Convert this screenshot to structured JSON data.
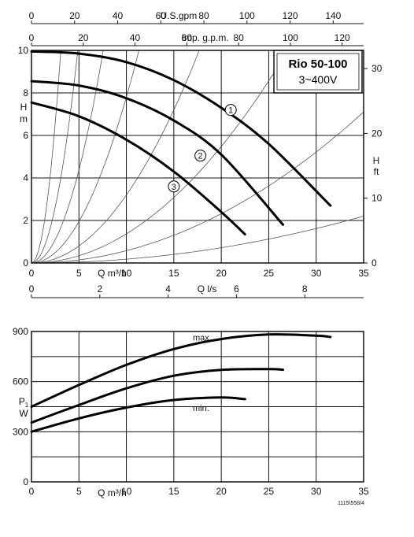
{
  "chart_data": [
    {
      "type": "line",
      "title": "",
      "xlabel": "Q m³/h",
      "ylabel": "H m",
      "y2label": "H ft",
      "xlim": [
        0,
        35
      ],
      "ylim": [
        0,
        10
      ],
      "x_ticks": [
        "0",
        "5",
        "10",
        "15",
        "20",
        "25",
        "30",
        "35"
      ],
      "y_ticks": [
        "0",
        "2",
        "4",
        "6",
        "8",
        "10"
      ],
      "y2_ticks": [
        "0",
        "10",
        "20",
        "30"
      ],
      "y2_ticks_values": [
        0,
        3.048,
        6.096,
        9.144
      ],
      "top_axis_usgpm": {
        "label": "U.S.gpm",
        "ticks": [
          "0",
          "20",
          "40",
          "60",
          "80",
          "100",
          "120",
          "140"
        ],
        "m3h_per_unit": 0.2271
      },
      "top_axis_impgpm": {
        "label": "Imp. g.p.m.",
        "ticks": [
          "0",
          "20",
          "40",
          "60",
          "80",
          "100",
          "120"
        ],
        "m3h_per_unit": 0.2728
      },
      "bottom_axis_ls": {
        "label": "Q  l/s",
        "ticks": [
          "0",
          "2",
          "4",
          "6",
          "8"
        ],
        "m3h_per_unit": 3.6
      },
      "legend_box": {
        "title": "Rio 50-100",
        "subtitle": "3~400V"
      },
      "grid": true,
      "series": [
        {
          "name": "1",
          "x": [
            0,
            5,
            10,
            15,
            20,
            25,
            31.5
          ],
          "y": [
            9.95,
            9.85,
            9.45,
            8.6,
            7.3,
            5.6,
            2.7
          ]
        },
        {
          "name": "2",
          "x": [
            0,
            5,
            10,
            15,
            20,
            26.5
          ],
          "y": [
            8.55,
            8.35,
            7.75,
            6.7,
            5.1,
            1.8
          ]
        },
        {
          "name": "3",
          "x": [
            0,
            5,
            10,
            15,
            20,
            22.5
          ],
          "y": [
            7.55,
            6.9,
            5.8,
            4.3,
            2.4,
            1.35
          ]
        }
      ],
      "system_curves_coef": [
        1.05,
        0.42,
        0.175,
        0.078,
        0.032,
        0.0137,
        0.0058,
        0.0018
      ]
    },
    {
      "type": "line",
      "title": "",
      "xlabel": "Q m³/h",
      "ylabel": "P1 W",
      "xlim": [
        0,
        35
      ],
      "ylim": [
        0,
        900
      ],
      "x_ticks": [
        "0",
        "5",
        "10",
        "15",
        "20",
        "25",
        "30",
        "35"
      ],
      "y_ticks": [
        "0",
        "300",
        "600",
        "900"
      ],
      "grid": true,
      "series": [
        {
          "name": "max.",
          "x": [
            0,
            5,
            10,
            15,
            20,
            25,
            30,
            31.5
          ],
          "y": [
            450,
            580,
            700,
            795,
            855,
            882,
            875,
            867
          ]
        },
        {
          "name": "",
          "x": [
            0,
            5,
            10,
            15,
            20,
            25,
            26.5
          ],
          "y": [
            355,
            460,
            560,
            635,
            670,
            675,
            671
          ]
        },
        {
          "name": "min.",
          "x": [
            0,
            5,
            10,
            15,
            20,
            22.5
          ],
          "y": [
            300,
            380,
            445,
            490,
            505,
            495
          ]
        }
      ]
    }
  ],
  "footnote": "1115\\558/4"
}
